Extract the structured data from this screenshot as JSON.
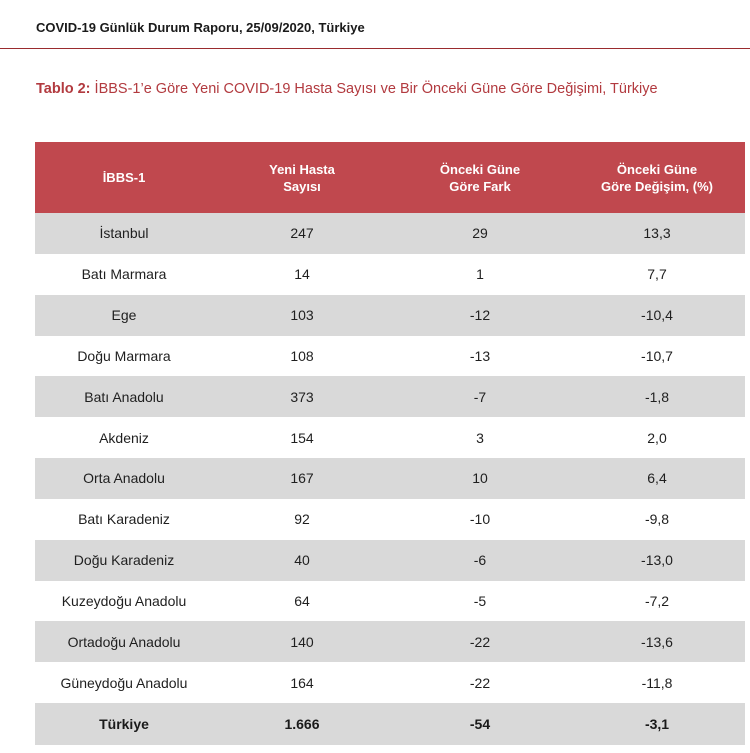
{
  "report": {
    "header": "COVID-19 Günlük Durum Raporu, 25/09/2020, Türkiye"
  },
  "caption": {
    "label": "Tablo 2:",
    "text": " İBBS-1’e Göre Yeni COVID-19 Hasta Sayısı ve Bir Önceki Güne Göre Değişimi, Türkiye"
  },
  "colors": {
    "header_bg": "#c0484e",
    "caption": "#b23a3f",
    "stripe": "#d9d9d9"
  },
  "table": {
    "headers": [
      [
        "İBBS-1"
      ],
      [
        "Yeni Hasta",
        "Sayısı"
      ],
      [
        "Önceki Güne",
        "Göre Fark"
      ],
      [
        "Önceki Güne",
        "Göre Değişim, (%)"
      ]
    ],
    "rows": [
      [
        "İstanbul",
        "247",
        "29",
        "13,3"
      ],
      [
        "Batı Marmara",
        "14",
        "1",
        "7,7"
      ],
      [
        "Ege",
        "103",
        "-12",
        "-10,4"
      ],
      [
        "Doğu Marmara",
        "108",
        "-13",
        "-10,7"
      ],
      [
        "Batı Anadolu",
        "373",
        "-7",
        "-1,8"
      ],
      [
        "Akdeniz",
        "154",
        "3",
        "2,0"
      ],
      [
        "Orta Anadolu",
        "167",
        "10",
        "6,4"
      ],
      [
        "Batı Karadeniz",
        "92",
        "-10",
        "-9,8"
      ],
      [
        "Doğu Karadeniz",
        "40",
        "-6",
        "-13,0"
      ],
      [
        "Kuzeydoğu Anadolu",
        "64",
        "-5",
        "-7,2"
      ],
      [
        "Ortadoğu Anadolu",
        "140",
        "-22",
        "-13,6"
      ],
      [
        "Güneydoğu Anadolu",
        "164",
        "-22",
        "-11,8"
      ]
    ],
    "total": [
      "Türkiye",
      "1.666",
      "-54",
      "-3,1"
    ]
  }
}
